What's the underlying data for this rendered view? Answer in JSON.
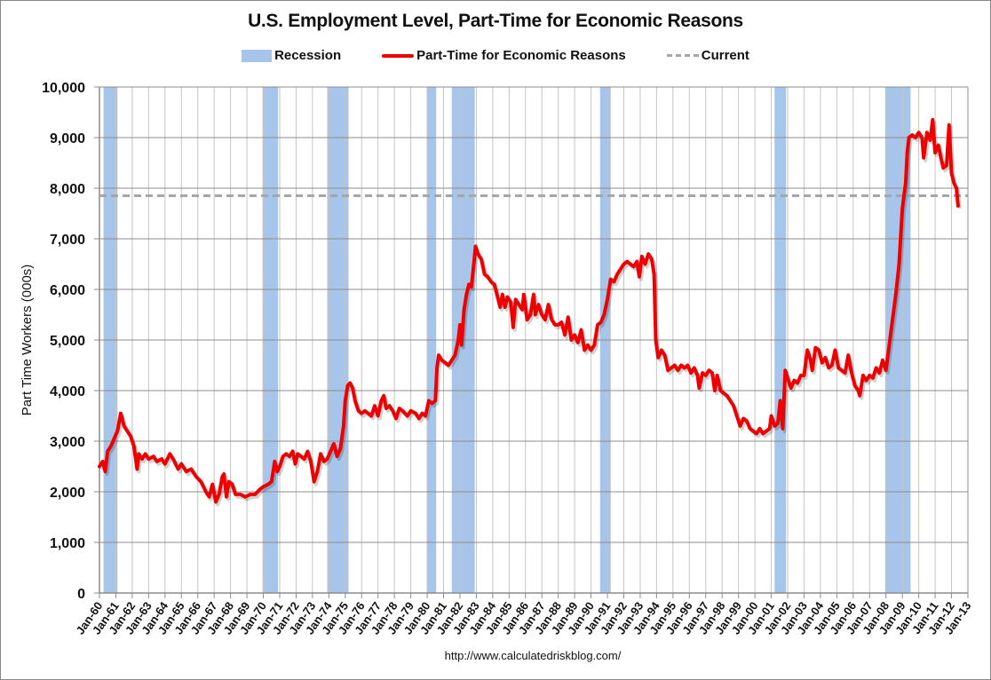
{
  "chart_data": {
    "type": "line",
    "title": "U.S. Employment Level, Part-Time for Economic Reasons",
    "xlabel": "",
    "ylabel": "Part Time Workers (000s)",
    "ylim": [
      0,
      10000
    ],
    "yticks": [
      0,
      1000,
      2000,
      3000,
      4000,
      5000,
      6000,
      7000,
      8000,
      9000,
      10000
    ],
    "ytick_labels": [
      "0",
      "1,000",
      "2,000",
      "3,000",
      "4,000",
      "5,000",
      "6,000",
      "7,000",
      "8,000",
      "9,000",
      "10,000"
    ],
    "xlim": [
      1960,
      2013
    ],
    "xtick_labels": [
      "Jan-60",
      "Jan-61",
      "Jan-62",
      "Jan-63",
      "Jan-64",
      "Jan-65",
      "Jan-66",
      "Jan-67",
      "Jan-68",
      "Jan-69",
      "Jan-70",
      "Jan-71",
      "Jan-72",
      "Jan-73",
      "Jan-74",
      "Jan-75",
      "Jan-76",
      "Jan-77",
      "Jan-78",
      "Jan-79",
      "Jan-80",
      "Jan-81",
      "Jan-82",
      "Jan-83",
      "Jan-84",
      "Jan-85",
      "Jan-86",
      "Jan-87",
      "Jan-88",
      "Jan-89",
      "Jan-90",
      "Jan-91",
      "Jan-92",
      "Jan-93",
      "Jan-94",
      "Jan-95",
      "Jan-96",
      "Jan-97",
      "Jan-98",
      "Jan-99",
      "Jan-00",
      "Jan-01",
      "Jan-02",
      "Jan-03",
      "Jan-04",
      "Jan-05",
      "Jan-06",
      "Jan-07",
      "Jan-08",
      "Jan-09",
      "Jan-10",
      "Jan-11",
      "Jan-12",
      "Jan-13"
    ],
    "grid": true,
    "legend_position": "top",
    "legend": [
      "Recession",
      "Part-Time for Economic Reasons",
      "Current"
    ],
    "recessions": [
      [
        1960.25,
        1961.1
      ],
      [
        1969.95,
        1970.9
      ],
      [
        1973.9,
        1975.2
      ],
      [
        1980.0,
        1980.55
      ],
      [
        1981.5,
        1982.9
      ],
      [
        1990.55,
        1991.2
      ],
      [
        2001.2,
        2001.9
      ],
      [
        2007.95,
        2009.5
      ]
    ],
    "current": 7850,
    "series": [
      {
        "name": "Part-Time for Economic Reasons",
        "color": "#ee0000",
        "points": [
          [
            1960.0,
            2500
          ],
          [
            1960.2,
            2600
          ],
          [
            1960.35,
            2400
          ],
          [
            1960.5,
            2800
          ],
          [
            1960.7,
            2900
          ],
          [
            1960.9,
            3050
          ],
          [
            1961.1,
            3200
          ],
          [
            1961.3,
            3550
          ],
          [
            1961.5,
            3300
          ],
          [
            1961.7,
            3200
          ],
          [
            1961.9,
            3100
          ],
          [
            1962.1,
            2900
          ],
          [
            1962.3,
            2450
          ],
          [
            1962.4,
            2750
          ],
          [
            1962.6,
            2650
          ],
          [
            1962.8,
            2750
          ],
          [
            1963.0,
            2650
          ],
          [
            1963.3,
            2700
          ],
          [
            1963.5,
            2600
          ],
          [
            1963.8,
            2650
          ],
          [
            1964.0,
            2550
          ],
          [
            1964.3,
            2750
          ],
          [
            1964.5,
            2650
          ],
          [
            1964.8,
            2450
          ],
          [
            1965.0,
            2550
          ],
          [
            1965.3,
            2400
          ],
          [
            1965.6,
            2450
          ],
          [
            1965.9,
            2300
          ],
          [
            1966.2,
            2200
          ],
          [
            1966.5,
            2000
          ],
          [
            1966.7,
            1900
          ],
          [
            1966.9,
            2150
          ],
          [
            1967.1,
            1800
          ],
          [
            1967.3,
            1950
          ],
          [
            1967.5,
            2300
          ],
          [
            1967.6,
            2350
          ],
          [
            1967.75,
            1900
          ],
          [
            1967.9,
            2200
          ],
          [
            1968.1,
            2150
          ],
          [
            1968.3,
            1950
          ],
          [
            1968.6,
            1950
          ],
          [
            1968.9,
            1900
          ],
          [
            1969.2,
            1950
          ],
          [
            1969.5,
            1950
          ],
          [
            1969.8,
            2050
          ],
          [
            1970.0,
            2100
          ],
          [
            1970.3,
            2150
          ],
          [
            1970.5,
            2200
          ],
          [
            1970.7,
            2600
          ],
          [
            1970.85,
            2400
          ],
          [
            1971.0,
            2500
          ],
          [
            1971.2,
            2700
          ],
          [
            1971.4,
            2750
          ],
          [
            1971.6,
            2700
          ],
          [
            1971.8,
            2800
          ],
          [
            1971.95,
            2550
          ],
          [
            1972.1,
            2750
          ],
          [
            1972.3,
            2700
          ],
          [
            1972.5,
            2650
          ],
          [
            1972.7,
            2800
          ],
          [
            1972.9,
            2600
          ],
          [
            1973.0,
            2400
          ],
          [
            1973.1,
            2200
          ],
          [
            1973.3,
            2400
          ],
          [
            1973.5,
            2750
          ],
          [
            1973.7,
            2600
          ],
          [
            1973.9,
            2650
          ],
          [
            1974.1,
            2800
          ],
          [
            1974.3,
            2950
          ],
          [
            1974.5,
            2700
          ],
          [
            1974.7,
            2850
          ],
          [
            1974.9,
            3300
          ],
          [
            1975.0,
            3800
          ],
          [
            1975.15,
            4100
          ],
          [
            1975.3,
            4150
          ],
          [
            1975.45,
            4050
          ],
          [
            1975.6,
            3800
          ],
          [
            1975.8,
            3600
          ],
          [
            1976.0,
            3550
          ],
          [
            1976.2,
            3600
          ],
          [
            1976.4,
            3550
          ],
          [
            1976.6,
            3500
          ],
          [
            1976.8,
            3700
          ],
          [
            1977.0,
            3500
          ],
          [
            1977.2,
            3800
          ],
          [
            1977.35,
            3900
          ],
          [
            1977.5,
            3650
          ],
          [
            1977.7,
            3700
          ],
          [
            1977.9,
            3600
          ],
          [
            1978.1,
            3450
          ],
          [
            1978.3,
            3650
          ],
          [
            1978.5,
            3600
          ],
          [
            1978.8,
            3500
          ],
          [
            1979.0,
            3600
          ],
          [
            1979.3,
            3550
          ],
          [
            1979.5,
            3450
          ],
          [
            1979.7,
            3550
          ],
          [
            1979.9,
            3500
          ],
          [
            1980.1,
            3800
          ],
          [
            1980.3,
            3750
          ],
          [
            1980.5,
            3800
          ],
          [
            1980.6,
            4450
          ],
          [
            1980.7,
            4700
          ],
          [
            1980.9,
            4600
          ],
          [
            1981.1,
            4550
          ],
          [
            1981.3,
            4500
          ],
          [
            1981.5,
            4600
          ],
          [
            1981.7,
            4700
          ],
          [
            1981.9,
            5000
          ],
          [
            1982.0,
            5300
          ],
          [
            1982.1,
            4900
          ],
          [
            1982.25,
            5600
          ],
          [
            1982.4,
            5900
          ],
          [
            1982.55,
            6100
          ],
          [
            1982.7,
            6050
          ],
          [
            1982.85,
            6500
          ],
          [
            1982.95,
            6850
          ],
          [
            1983.1,
            6700
          ],
          [
            1983.3,
            6600
          ],
          [
            1983.5,
            6300
          ],
          [
            1983.7,
            6250
          ],
          [
            1983.9,
            6150
          ],
          [
            1984.1,
            6100
          ],
          [
            1984.3,
            5850
          ],
          [
            1984.45,
            5650
          ],
          [
            1984.6,
            5900
          ],
          [
            1984.75,
            5650
          ],
          [
            1984.9,
            5850
          ],
          [
            1985.1,
            5750
          ],
          [
            1985.25,
            5250
          ],
          [
            1985.4,
            5800
          ],
          [
            1985.6,
            5700
          ],
          [
            1985.8,
            5600
          ],
          [
            1985.9,
            5900
          ],
          [
            1986.1,
            5400
          ],
          [
            1986.3,
            5500
          ],
          [
            1986.5,
            5900
          ],
          [
            1986.6,
            5500
          ],
          [
            1986.8,
            5700
          ],
          [
            1987.0,
            5500
          ],
          [
            1987.2,
            5400
          ],
          [
            1987.4,
            5700
          ],
          [
            1987.6,
            5400
          ],
          [
            1987.8,
            5300
          ],
          [
            1988.0,
            5300
          ],
          [
            1988.2,
            5350
          ],
          [
            1988.4,
            5100
          ],
          [
            1988.6,
            5450
          ],
          [
            1988.8,
            5000
          ],
          [
            1989.0,
            5100
          ],
          [
            1989.2,
            4950
          ],
          [
            1989.4,
            5200
          ],
          [
            1989.6,
            4800
          ],
          [
            1989.8,
            4900
          ],
          [
            1990.0,
            4800
          ],
          [
            1990.2,
            4900
          ],
          [
            1990.4,
            5300
          ],
          [
            1990.6,
            5350
          ],
          [
            1990.8,
            5500
          ],
          [
            1991.0,
            5800
          ],
          [
            1991.2,
            6200
          ],
          [
            1991.4,
            6150
          ],
          [
            1991.6,
            6300
          ],
          [
            1991.8,
            6400
          ],
          [
            1992.0,
            6500
          ],
          [
            1992.2,
            6550
          ],
          [
            1992.4,
            6500
          ],
          [
            1992.6,
            6450
          ],
          [
            1992.8,
            6550
          ],
          [
            1992.95,
            6250
          ],
          [
            1993.1,
            6650
          ],
          [
            1993.3,
            6500
          ],
          [
            1993.5,
            6700
          ],
          [
            1993.7,
            6600
          ],
          [
            1993.85,
            6300
          ],
          [
            1993.95,
            5000
          ],
          [
            1994.1,
            4650
          ],
          [
            1994.3,
            4800
          ],
          [
            1994.5,
            4700
          ],
          [
            1994.7,
            4400
          ],
          [
            1994.9,
            4450
          ],
          [
            1995.1,
            4500
          ],
          [
            1995.3,
            4400
          ],
          [
            1995.5,
            4500
          ],
          [
            1995.7,
            4450
          ],
          [
            1995.9,
            4500
          ],
          [
            1996.1,
            4350
          ],
          [
            1996.3,
            4450
          ],
          [
            1996.5,
            4300
          ],
          [
            1996.6,
            4050
          ],
          [
            1996.8,
            4350
          ],
          [
            1997.0,
            4300
          ],
          [
            1997.2,
            4400
          ],
          [
            1997.4,
            4350
          ],
          [
            1997.55,
            4000
          ],
          [
            1997.7,
            4300
          ],
          [
            1997.9,
            4000
          ],
          [
            1998.1,
            3950
          ],
          [
            1998.3,
            3900
          ],
          [
            1998.5,
            3800
          ],
          [
            1998.7,
            3700
          ],
          [
            1998.9,
            3500
          ],
          [
            1999.1,
            3300
          ],
          [
            1999.3,
            3450
          ],
          [
            1999.5,
            3400
          ],
          [
            1999.7,
            3250
          ],
          [
            1999.9,
            3200
          ],
          [
            2000.1,
            3150
          ],
          [
            2000.3,
            3250
          ],
          [
            2000.5,
            3150
          ],
          [
            2000.7,
            3200
          ],
          [
            2000.9,
            3250
          ],
          [
            2001.0,
            3500
          ],
          [
            2001.2,
            3300
          ],
          [
            2001.4,
            3350
          ],
          [
            2001.55,
            3800
          ],
          [
            2001.7,
            3250
          ],
          [
            2001.85,
            4400
          ],
          [
            2002.0,
            4250
          ],
          [
            2002.2,
            4050
          ],
          [
            2002.4,
            4200
          ],
          [
            2002.6,
            4150
          ],
          [
            2002.8,
            4300
          ],
          [
            2003.0,
            4300
          ],
          [
            2003.2,
            4800
          ],
          [
            2003.4,
            4600
          ],
          [
            2003.5,
            4400
          ],
          [
            2003.7,
            4850
          ],
          [
            2003.9,
            4800
          ],
          [
            2004.1,
            4550
          ],
          [
            2004.3,
            4650
          ],
          [
            2004.5,
            4450
          ],
          [
            2004.7,
            4500
          ],
          [
            2004.9,
            4800
          ],
          [
            2005.1,
            4450
          ],
          [
            2005.3,
            4400
          ],
          [
            2005.5,
            4350
          ],
          [
            2005.7,
            4700
          ],
          [
            2005.9,
            4350
          ],
          [
            2006.1,
            4100
          ],
          [
            2006.3,
            4000
          ],
          [
            2006.4,
            3900
          ],
          [
            2006.6,
            4300
          ],
          [
            2006.8,
            4200
          ],
          [
            2007.0,
            4300
          ],
          [
            2007.2,
            4250
          ],
          [
            2007.4,
            4450
          ],
          [
            2007.6,
            4350
          ],
          [
            2007.8,
            4600
          ],
          [
            2008.0,
            4400
          ],
          [
            2008.2,
            4900
          ],
          [
            2008.4,
            5400
          ],
          [
            2008.6,
            5900
          ],
          [
            2008.8,
            6500
          ],
          [
            2009.0,
            7600
          ],
          [
            2009.2,
            8100
          ],
          [
            2009.3,
            8700
          ],
          [
            2009.4,
            9000
          ],
          [
            2009.6,
            9050
          ],
          [
            2009.8,
            9000
          ],
          [
            2010.0,
            9100
          ],
          [
            2010.2,
            9000
          ],
          [
            2010.3,
            8600
          ],
          [
            2010.5,
            9100
          ],
          [
            2010.7,
            8950
          ],
          [
            2010.85,
            9350
          ],
          [
            2011.0,
            8700
          ],
          [
            2011.2,
            8850
          ],
          [
            2011.35,
            8600
          ],
          [
            2011.5,
            8400
          ],
          [
            2011.7,
            8450
          ],
          [
            2011.85,
            9250
          ],
          [
            2012.0,
            8300
          ],
          [
            2012.15,
            8100
          ],
          [
            2012.3,
            8000
          ],
          [
            2012.4,
            7650
          ]
        ]
      }
    ]
  },
  "source": "http://www.calculatedriskblog.com/"
}
